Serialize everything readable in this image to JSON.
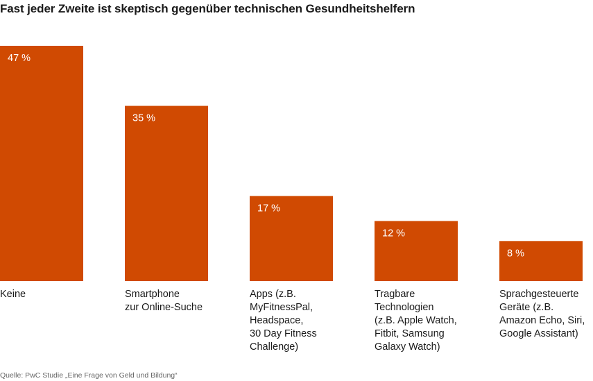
{
  "title": "Fast jeder Zweite ist skeptisch gegenüber technischen Gesundheitshelfern",
  "source": "Quelle: PwC Studie „Eine Frage von Geld und Bildung“",
  "colors": {
    "bar": "#d04a02",
    "bar_label": "#ffffff",
    "text": "#1a1a1a"
  },
  "chart_data": {
    "type": "bar",
    "title": "Fast jeder Zweite ist skeptisch gegenüber technischen Gesundheitshelfern",
    "categories": [
      "Keine",
      "Smartphone zur Online-Suche",
      "Apps (z.B. MyFitnessPal, Headspace, 30 Day Fitness Challenge)",
      "Tragbare Technologien (z.B. Apple Watch, Fitbit, Samsung Galaxy Watch)",
      "Sprachgesteuerte Geräte (z.B. Amazon Echo, Siri, Google Assistant)"
    ],
    "category_lines": [
      [
        "Keine"
      ],
      [
        "Smartphone",
        "zur Online-Suche"
      ],
      [
        "Apps (z.B.",
        "MyFitnessPal,",
        "Headspace,",
        "30 Day Fitness",
        "Challenge)"
      ],
      [
        "Tragbare",
        "Technologien",
        "(z.B. Apple Watch,",
        "Fitbit, Samsung",
        "Galaxy Watch)"
      ],
      [
        "Sprachgesteuerte",
        "Geräte (z.B.",
        "Amazon Echo, Siri,",
        "Google Assistant)"
      ]
    ],
    "values": [
      47,
      35,
      17,
      12,
      8
    ],
    "value_labels": [
      "47 %",
      "35 %",
      "17 %",
      "12 %",
      "8 %"
    ],
    "unit": "%",
    "xlabel": "",
    "ylabel": "",
    "ylim": [
      0,
      47
    ],
    "grid": false,
    "legend": "none"
  }
}
